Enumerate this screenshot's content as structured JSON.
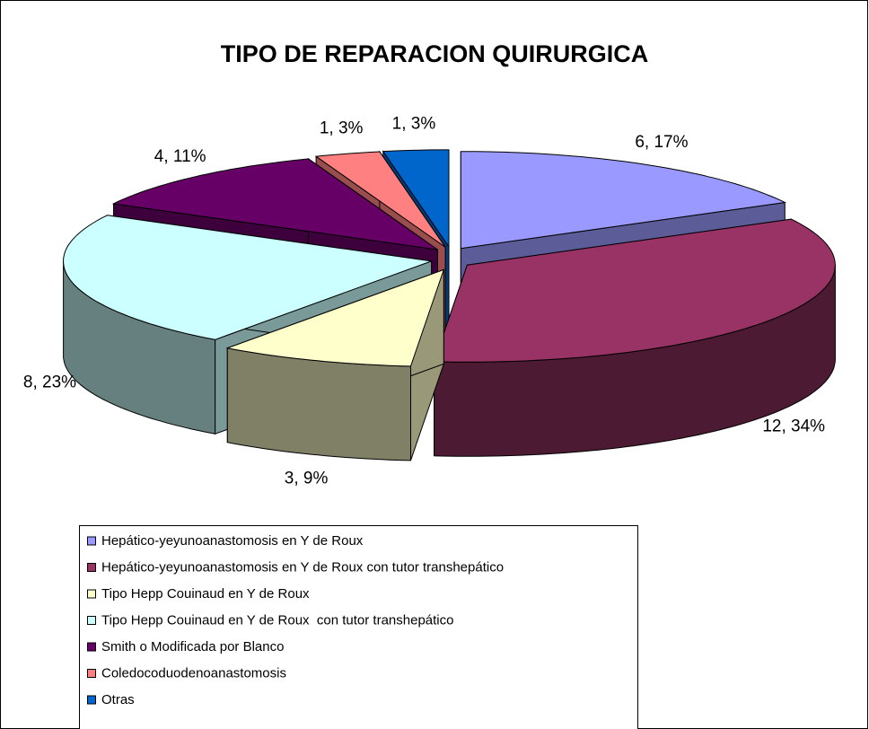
{
  "chart_data": {
    "type": "pie",
    "title": "TIPO DE REPARACION QUIRURGICA",
    "categories": [
      "Hepático-yeyunoanastomosis en Y de Roux",
      "Hepático-yeyunoanastomosis en Y de Roux con tutor transhepático",
      "Tipo Hepp Couinaud en Y de Roux",
      "Tipo Hepp Couinaud en Y de Roux  con tutor transhepático",
      "Smith o Modificada por Blanco",
      "Coledocoduodenoanastomosis",
      "Otras"
    ],
    "values": [
      6,
      12,
      3,
      8,
      4,
      1,
      1
    ],
    "value_labels": [
      "6, 17%",
      "12, 34%",
      "3, 9%",
      "8, 23%",
      "4, 11%",
      "1, 3%",
      "1, 3%"
    ],
    "colors": [
      "#9999ff",
      "#993366",
      "#ffffcc",
      "#ccffff",
      "#660066",
      "#ff8080",
      "#0066cc"
    ],
    "legend": "bottom"
  }
}
